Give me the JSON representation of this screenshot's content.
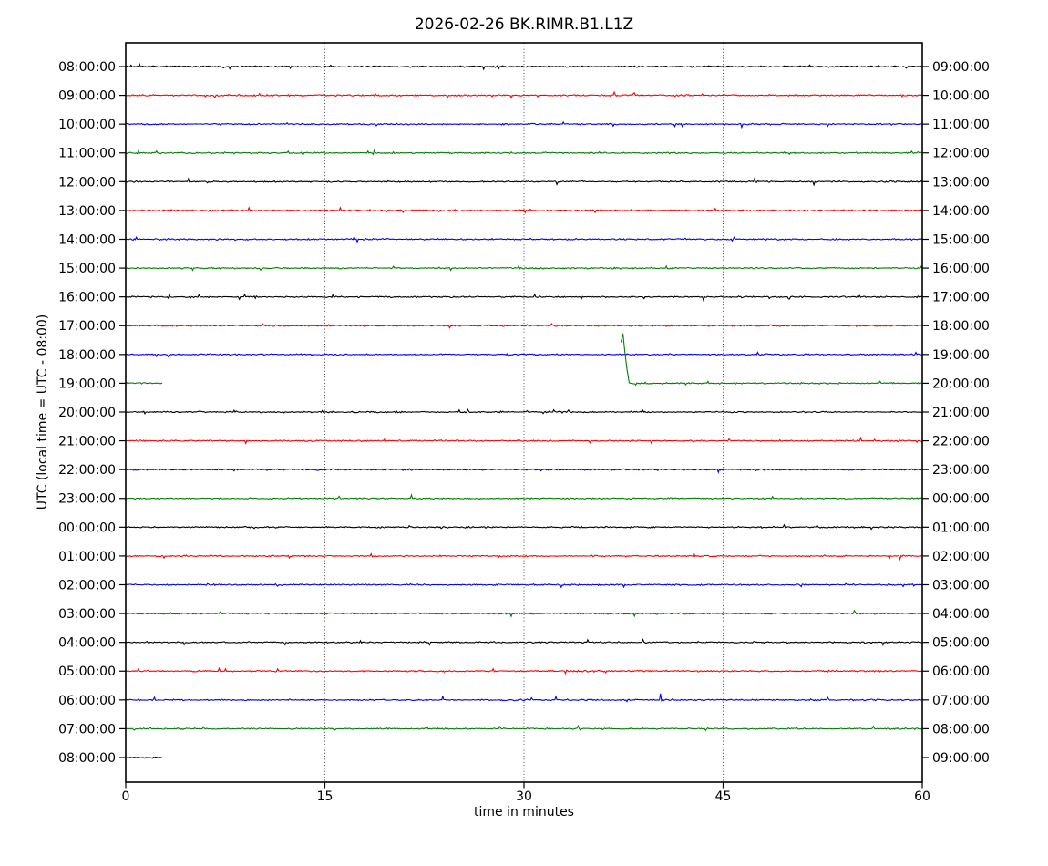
{
  "chart_data": {
    "type": "line",
    "subtype": "helicorder-dayplot",
    "title": "2026-02-26 BK.RIMR.B1.L1Z",
    "date": "2026-02-26",
    "station": "BK.RIMR.B1.L1Z",
    "xlabel": "time in minutes",
    "ylabel": "UTC (local time = UTC - 08:00)",
    "xlim": [
      0,
      60
    ],
    "x_ticks": [
      0,
      15,
      30,
      45,
      60
    ],
    "grid_minutes": [
      15,
      30,
      45
    ],
    "legend": "none",
    "color_cycle": [
      "#000000",
      "#ff0000",
      "#0000ff",
      "#008000"
    ],
    "rows": [
      {
        "left_label": "08:00:00",
        "right_label": "09:00:00",
        "color": "#000000",
        "segments_min": [
          [
            0,
            60
          ]
        ],
        "events": []
      },
      {
        "left_label": "09:00:00",
        "right_label": "10:00:00",
        "color": "#ff0000",
        "segments_min": [
          [
            0,
            60
          ]
        ],
        "events": []
      },
      {
        "left_label": "10:00:00",
        "right_label": "11:00:00",
        "color": "#0000ff",
        "segments_min": [
          [
            0,
            60
          ]
        ],
        "events": []
      },
      {
        "left_label": "11:00:00",
        "right_label": "12:00:00",
        "color": "#008000",
        "segments_min": [
          [
            0,
            60
          ]
        ],
        "events": []
      },
      {
        "left_label": "12:00:00",
        "right_label": "13:00:00",
        "color": "#000000",
        "segments_min": [
          [
            0,
            60
          ]
        ],
        "events": []
      },
      {
        "left_label": "13:00:00",
        "right_label": "14:00:00",
        "color": "#ff0000",
        "segments_min": [
          [
            0,
            60
          ]
        ],
        "events": []
      },
      {
        "left_label": "14:00:00",
        "right_label": "15:00:00",
        "color": "#0000ff",
        "segments_min": [
          [
            0,
            60
          ]
        ],
        "events": []
      },
      {
        "left_label": "15:00:00",
        "right_label": "16:00:00",
        "color": "#008000",
        "segments_min": [
          [
            0,
            60
          ]
        ],
        "events": []
      },
      {
        "left_label": "16:00:00",
        "right_label": "17:00:00",
        "color": "#000000",
        "segments_min": [
          [
            0,
            60
          ]
        ],
        "events": []
      },
      {
        "left_label": "17:00:00",
        "right_label": "18:00:00",
        "color": "#ff0000",
        "segments_min": [
          [
            0,
            60
          ]
        ],
        "events": []
      },
      {
        "left_label": "18:00:00",
        "right_label": "19:00:00",
        "color": "#0000ff",
        "segments_min": [
          [
            0,
            60
          ]
        ],
        "events": []
      },
      {
        "left_label": "19:00:00",
        "right_label": "20:00:00",
        "color": "#008000",
        "segments_min": [
          [
            0,
            2.75
          ],
          [
            37.3,
            60
          ]
        ],
        "events": [
          {
            "time_min": 37.3,
            "amplitude_rows": 1.74,
            "shape_rows": [
              [
                0,
                1.39
              ],
              [
                0.15,
                1.74
              ],
              [
                0.3,
                1.08
              ],
              [
                0.45,
                0.51
              ],
              [
                0.62,
                0
              ]
            ],
            "note": "large upward transient at data resumption after gap 2.75-37.3 min"
          }
        ]
      },
      {
        "left_label": "20:00:00",
        "right_label": "21:00:00",
        "color": "#000000",
        "segments_min": [
          [
            0,
            60
          ]
        ],
        "events": []
      },
      {
        "left_label": "21:00:00",
        "right_label": "22:00:00",
        "color": "#ff0000",
        "segments_min": [
          [
            0,
            60
          ]
        ],
        "events": []
      },
      {
        "left_label": "22:00:00",
        "right_label": "23:00:00",
        "color": "#0000ff",
        "segments_min": [
          [
            0,
            60
          ]
        ],
        "events": []
      },
      {
        "left_label": "23:00:00",
        "right_label": "00:00:00",
        "color": "#008000",
        "segments_min": [
          [
            0,
            60
          ]
        ],
        "events": []
      },
      {
        "left_label": "00:00:00",
        "right_label": "01:00:00",
        "color": "#000000",
        "segments_min": [
          [
            0,
            60
          ]
        ],
        "events": []
      },
      {
        "left_label": "01:00:00",
        "right_label": "02:00:00",
        "color": "#ff0000",
        "segments_min": [
          [
            0,
            60
          ]
        ],
        "events": []
      },
      {
        "left_label": "02:00:00",
        "right_label": "03:00:00",
        "color": "#0000ff",
        "segments_min": [
          [
            0,
            60
          ]
        ],
        "events": []
      },
      {
        "left_label": "03:00:00",
        "right_label": "04:00:00",
        "color": "#008000",
        "segments_min": [
          [
            0,
            60
          ]
        ],
        "events": []
      },
      {
        "left_label": "04:00:00",
        "right_label": "05:00:00",
        "color": "#000000",
        "segments_min": [
          [
            0,
            60
          ]
        ],
        "events": []
      },
      {
        "left_label": "05:00:00",
        "right_label": "06:00:00",
        "color": "#ff0000",
        "segments_min": [
          [
            0,
            60
          ]
        ],
        "events": []
      },
      {
        "left_label": "06:00:00",
        "right_label": "07:00:00",
        "color": "#0000ff",
        "segments_min": [
          [
            0,
            60
          ]
        ],
        "events": [
          {
            "time_min": 23.8,
            "amplitude_rows": 0.14,
            "shape_rows": [
              [
                0,
                0
              ],
              [
                0.08,
                0.14
              ],
              [
                0.16,
                0
              ]
            ],
            "note": "minor spike"
          },
          {
            "time_min": 40.2,
            "amplitude_rows": 0.22,
            "shape_rows": [
              [
                0,
                0
              ],
              [
                0.08,
                0.22
              ],
              [
                0.16,
                0
              ]
            ],
            "note": "minor spike"
          }
        ]
      },
      {
        "left_label": "07:00:00",
        "right_label": "08:00:00",
        "color": "#008000",
        "segments_min": [
          [
            0,
            60
          ]
        ],
        "events": []
      },
      {
        "left_label": "08:00:00",
        "right_label": "09:00:00",
        "color": "#000000",
        "segments_min": [
          [
            0,
            2.75
          ]
        ],
        "events": [],
        "note": "partial trace, recording ends at 08:02:45 UTC"
      }
    ]
  }
}
